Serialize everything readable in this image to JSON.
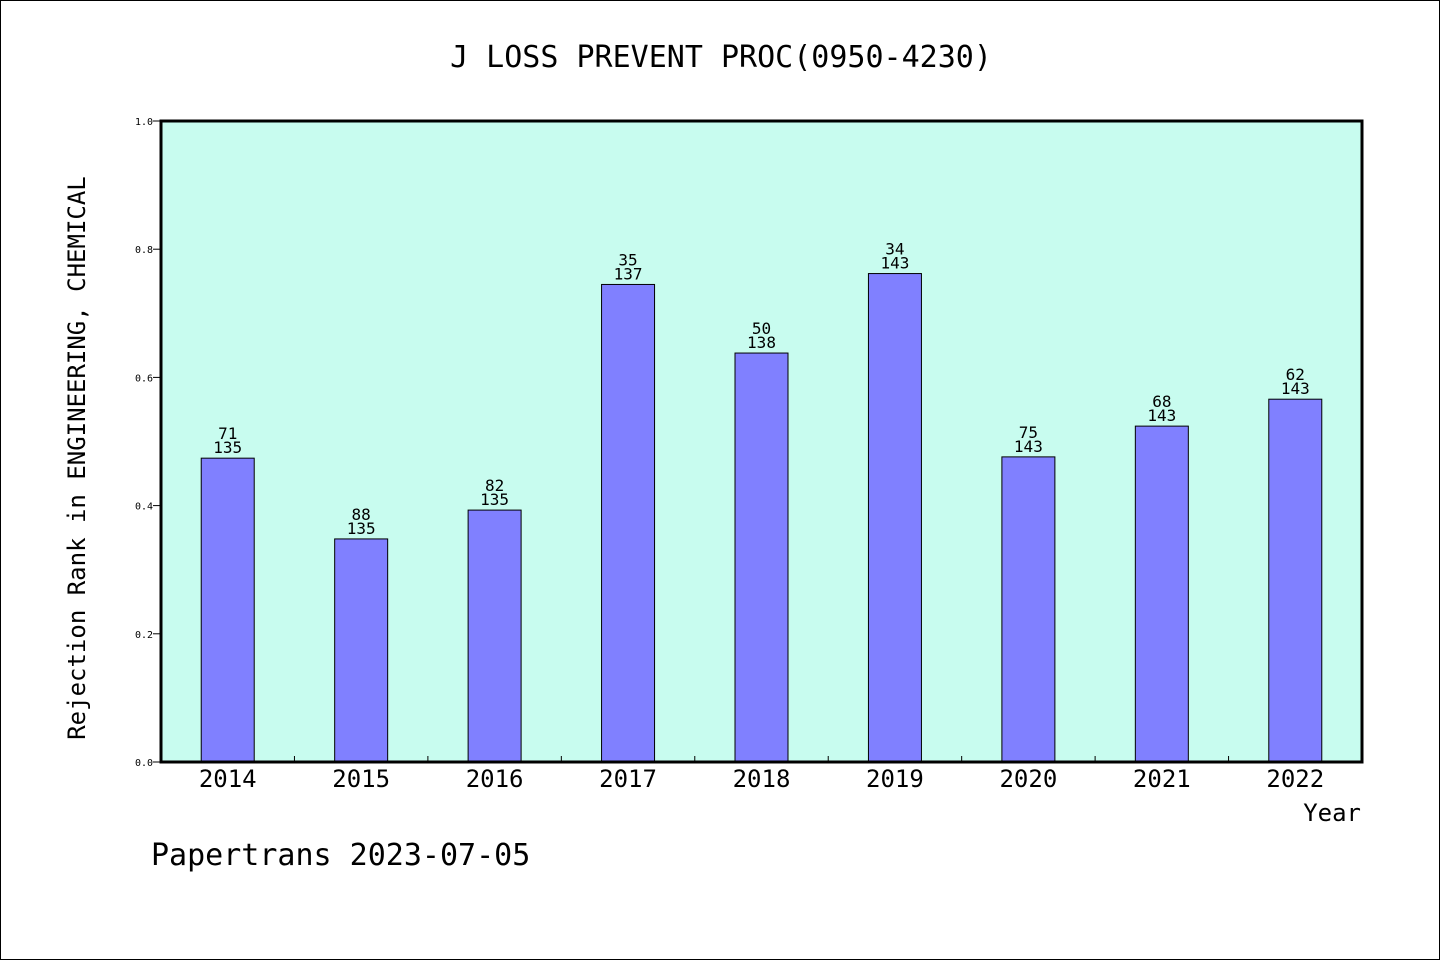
{
  "chart_data": {
    "type": "bar",
    "title": "J LOSS PREVENT PROC(0950-4230)",
    "xlabel": "Year",
    "ylabel": "Rejection Rank in ENGINEERING, CHEMICAL",
    "ylim": [
      0,
      1.0
    ],
    "yticks": [
      "0.0",
      "0.2",
      "0.4",
      "0.6",
      "0.8",
      "1.0"
    ],
    "categories": [
      "2014",
      "2015",
      "2016",
      "2017",
      "2018",
      "2019",
      "2020",
      "2021",
      "2022"
    ],
    "values": [
      0.474,
      0.348,
      0.393,
      0.745,
      0.638,
      0.762,
      0.476,
      0.524,
      0.566
    ],
    "rank_labels": [
      "71",
      "88",
      "82",
      "35",
      "50",
      "34",
      "75",
      "68",
      "62"
    ],
    "total_labels": [
      "135",
      "135",
      "135",
      "137",
      "138",
      "143",
      "143",
      "143",
      "143"
    ],
    "colors": {
      "bar": "#8080ff",
      "plot_background": "#c8fcef",
      "frame": "#000000"
    },
    "grid": false,
    "legend": "none"
  },
  "footer": {
    "text": "Papertrans 2023-07-05"
  }
}
